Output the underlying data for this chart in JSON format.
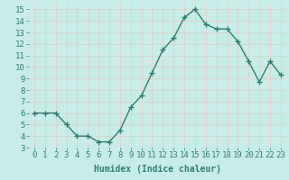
{
  "xlabel": "Humidex (Indice chaleur)",
  "x": [
    0,
    1,
    2,
    3,
    4,
    5,
    6,
    7,
    8,
    9,
    10,
    11,
    12,
    13,
    14,
    15,
    16,
    17,
    18,
    19,
    20,
    21,
    22,
    23
  ],
  "y": [
    6,
    6,
    6,
    5,
    4,
    4,
    3.5,
    3.5,
    4.5,
    6.5,
    7.5,
    9.5,
    11.5,
    12.5,
    14.3,
    15.0,
    13.7,
    13.3,
    13.3,
    12.2,
    10.5,
    8.7,
    10.5,
    9.3
  ],
  "line_color": "#2e7d6e",
  "marker": "+",
  "marker_size": 4,
  "marker_linewidth": 1.0,
  "line_width": 1.0,
  "bg_color": "#c8ede8",
  "grid_color_major": "#e8c8c8",
  "grid_color_minor": "#e8c8c8",
  "tick_label_color": "#2e7d6e",
  "axis_label_color": "#2e7d6e",
  "xlim": [
    -0.5,
    23.5
  ],
  "ylim": [
    3,
    15.5
  ],
  "yticks": [
    3,
    4,
    5,
    6,
    7,
    8,
    9,
    10,
    11,
    12,
    13,
    14,
    15
  ],
  "xticks": [
    0,
    1,
    2,
    3,
    4,
    5,
    6,
    7,
    8,
    9,
    10,
    11,
    12,
    13,
    14,
    15,
    16,
    17,
    18,
    19,
    20,
    21,
    22,
    23
  ],
  "font_family": "monospace",
  "xlabel_fontsize": 7,
  "tick_fontsize": 6.5
}
